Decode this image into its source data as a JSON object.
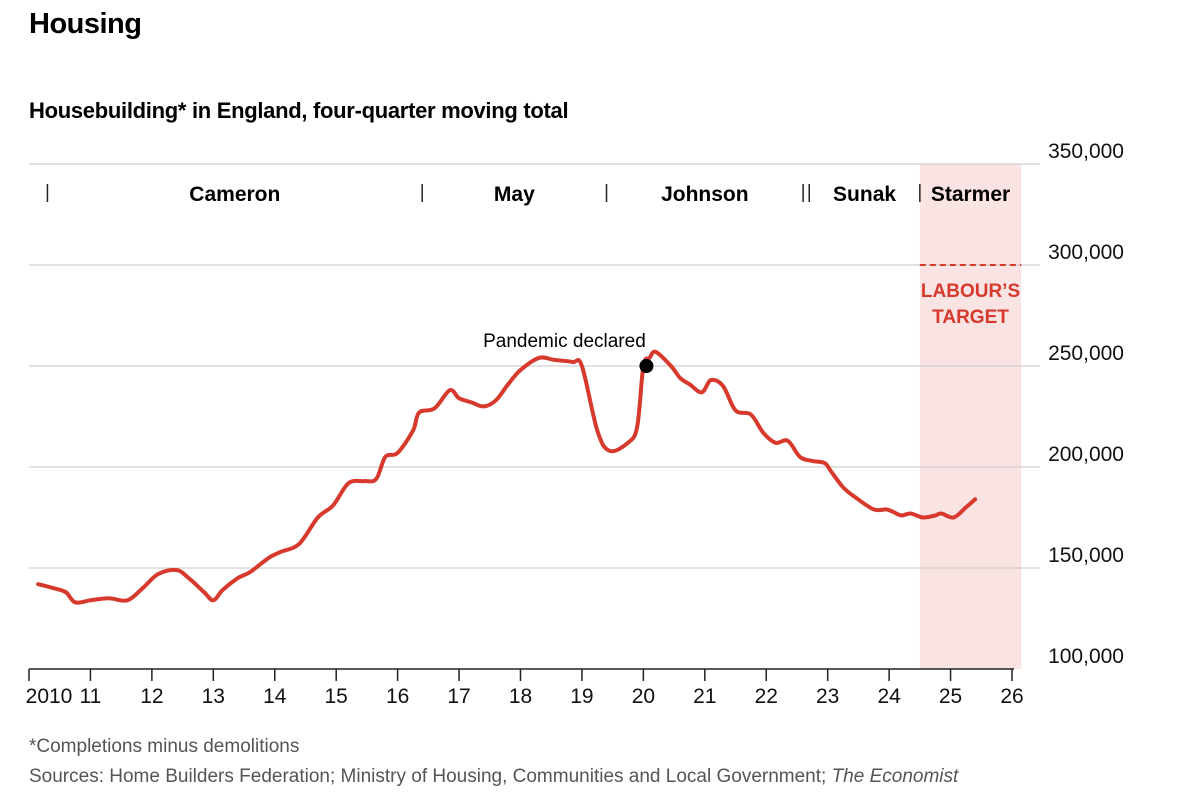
{
  "header": {
    "title": "Housing",
    "subtitle": "Housebuilding* in England, four-quarter moving total"
  },
  "footer": {
    "footnote": "*Completions minus demolitions",
    "sources": "Sources: Home Builders Federation; Ministry of Housing, Communities and Local Government;",
    "sources_italic": "The Economist"
  },
  "colors": {
    "line": "#d7392d",
    "shade": "#f9e3e3",
    "grid": "#d0d0d0"
  },
  "chart_data": {
    "type": "line",
    "title": "Housebuilding* in England, four-quarter moving total",
    "ylim": [
      100000,
      350000
    ],
    "y_ticks": [
      100000,
      150000,
      200000,
      250000,
      300000,
      350000
    ],
    "y_tick_labels": [
      "100,000",
      "150,000",
      "200,000",
      "250,000",
      "300,000",
      "350,000"
    ],
    "xlim": [
      2010,
      2026
    ],
    "x_ticks": [
      2010,
      2011,
      2012,
      2013,
      2014,
      2015,
      2016,
      2017,
      2018,
      2019,
      2020,
      2021,
      2022,
      2023,
      2024,
      2025,
      2026
    ],
    "x_tick_labels": [
      "2010",
      "11",
      "12",
      "13",
      "14",
      "15",
      "16",
      "17",
      "18",
      "19",
      "20",
      "21",
      "22",
      "23",
      "24",
      "25",
      "26"
    ],
    "series": [
      {
        "name": "Housebuilding",
        "x": [
          2010.15,
          2010.4,
          2010.6,
          2010.75,
          2011.0,
          2011.3,
          2011.6,
          2011.85,
          2012.1,
          2012.4,
          2012.6,
          2012.85,
          2013.0,
          2013.15,
          2013.4,
          2013.6,
          2013.9,
          2014.1,
          2014.4,
          2014.7,
          2014.95,
          2015.2,
          2015.45,
          2015.65,
          2015.8,
          2016.0,
          2016.25,
          2016.35,
          2016.6,
          2016.85,
          2017.0,
          2017.2,
          2017.4,
          2017.6,
          2017.8,
          2018.0,
          2018.3,
          2018.55,
          2018.85,
          2019.0,
          2019.25,
          2019.45,
          2019.75,
          2019.9,
          2020.0,
          2020.1,
          2020.2,
          2020.45,
          2020.6,
          2020.75,
          2020.95,
          2021.1,
          2021.3,
          2021.5,
          2021.75,
          2021.95,
          2022.15,
          2022.35,
          2022.55,
          2022.75,
          2022.95,
          2023.05,
          2023.25,
          2023.45,
          2023.75,
          2023.95,
          2024.05,
          2024.2,
          2024.35,
          2024.55,
          2024.75,
          2024.85,
          2025.05,
          2025.25,
          2025.4
        ],
        "y": [
          142000,
          140000,
          138000,
          133000,
          134000,
          135000,
          134000,
          140000,
          147000,
          149000,
          145000,
          138000,
          134000,
          139000,
          145000,
          148000,
          155000,
          158000,
          162000,
          175000,
          181000,
          192000,
          193000,
          194000,
          205000,
          207000,
          218000,
          227000,
          229000,
          238000,
          234000,
          232000,
          230000,
          233000,
          241000,
          248000,
          254000,
          253000,
          252000,
          250000,
          218000,
          208000,
          212000,
          220000,
          250000,
          254000,
          257000,
          250000,
          244000,
          241000,
          237000,
          243000,
          240000,
          228000,
          226000,
          217000,
          212000,
          213000,
          205000,
          203000,
          202000,
          198000,
          190000,
          185000,
          179000,
          179000,
          178000,
          176000,
          177000,
          175000,
          176000,
          177000,
          175000,
          180000,
          184000
        ]
      }
    ],
    "annotations": [
      {
        "text": "Pandemic declared",
        "x": 2020.05,
        "y": 250000
      }
    ],
    "target": {
      "label_line1": "LABOUR’S",
      "label_line2": "TARGET",
      "value": 300000
    },
    "pm_terms": [
      {
        "name": "Cameron",
        "start": 2010.3,
        "end": 2016.4
      },
      {
        "name": "May",
        "start": 2016.4,
        "end": 2019.4
      },
      {
        "name": "Johnson",
        "start": 2019.4,
        "end": 2022.6
      },
      {
        "name": "",
        "start": 2022.6,
        "end": 2022.7
      },
      {
        "name": "Sunak",
        "start": 2022.7,
        "end": 2024.5
      },
      {
        "name": "Starmer",
        "start": 2024.5,
        "end": 2026.15
      }
    ],
    "shaded_period": {
      "start": 2024.5,
      "end": 2026.15
    }
  }
}
